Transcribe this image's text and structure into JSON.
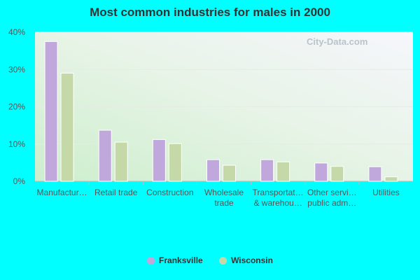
{
  "title": "Most common industries for males in 2000",
  "watermark": "City-Data.com",
  "colors": {
    "Franksville": "#c0a8dc",
    "Wisconsin": "#c5d9a8"
  },
  "chart_data": {
    "type": "bar",
    "title": "Most common industries for males in 2000",
    "xlabel": "",
    "ylabel": "",
    "ylim": [
      0,
      40
    ],
    "y_ticks": [
      "0%",
      "10%",
      "20%",
      "30%",
      "40%"
    ],
    "y_tick_values": [
      0,
      10,
      20,
      30,
      40
    ],
    "categories": [
      [
        "Manufactur…"
      ],
      [
        "Retail trade"
      ],
      [
        "Construction"
      ],
      [
        "Wholesale",
        "trade"
      ],
      [
        "Transportat…",
        "& warehou…"
      ],
      [
        "Other servi…",
        "public adm…"
      ],
      [
        "Utilities"
      ]
    ],
    "series": [
      {
        "name": "Franksville",
        "values": [
          37.5,
          13.7,
          11.2,
          5.8,
          5.8,
          4.9,
          3.9
        ]
      },
      {
        "name": "Wisconsin",
        "values": [
          29.0,
          10.5,
          10.1,
          4.3,
          5.2,
          4.0,
          1.2
        ]
      }
    ],
    "legend": "bottom",
    "grid": true
  }
}
